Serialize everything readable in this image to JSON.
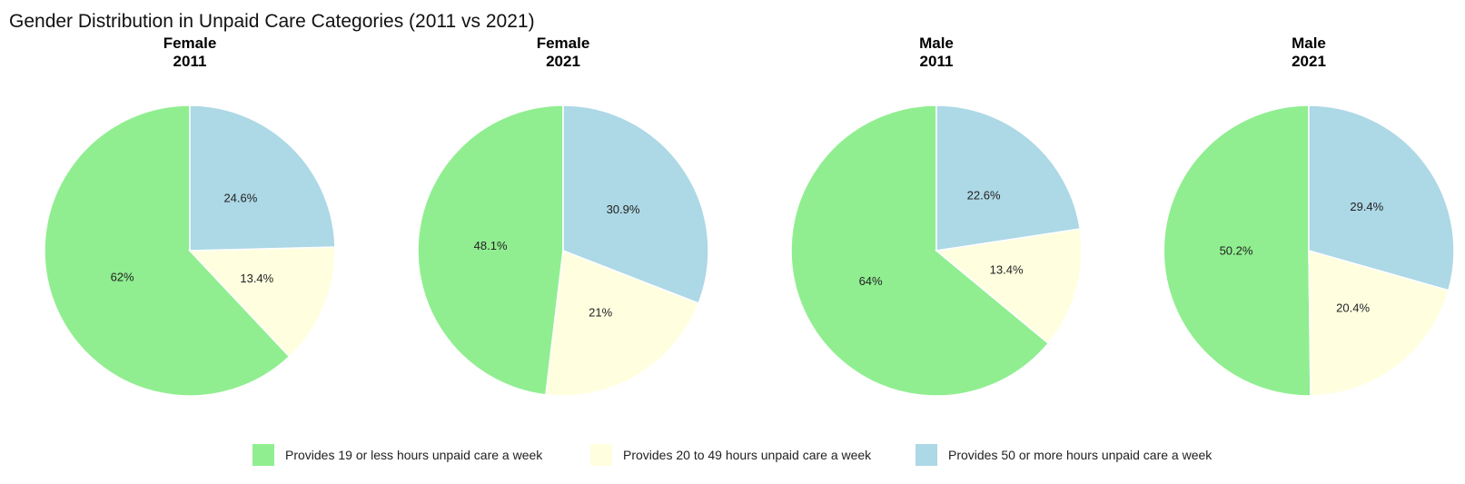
{
  "chart_data": {
    "type": "pie",
    "title": "Gender Distribution in Unpaid Care Categories (2011 vs 2021)",
    "categories": [
      "Provides 19 or less hours unpaid care a week",
      "Provides 20 to 49 hours unpaid care a week",
      "Provides 50 or more hours unpaid care a week"
    ],
    "colors": [
      "#90ee90",
      "#ffffe0",
      "#add8e6"
    ],
    "legend_position": "bottom",
    "panels": [
      {
        "line1": "Female",
        "line2": "2011",
        "values": [
          62.0,
          13.4,
          24.6
        ],
        "labels": [
          "62%",
          "13.4%",
          "24.6%"
        ]
      },
      {
        "line1": "Female",
        "line2": "2021",
        "values": [
          48.1,
          21.0,
          30.9
        ],
        "labels": [
          "48.1%",
          "21%",
          "30.9%"
        ]
      },
      {
        "line1": "Male",
        "line2": "2011",
        "values": [
          64.0,
          13.4,
          22.6
        ],
        "labels": [
          "64%",
          "13.4%",
          "22.6%"
        ]
      },
      {
        "line1": "Male",
        "line2": "2021",
        "values": [
          50.2,
          20.4,
          29.4
        ],
        "labels": [
          "50.2%",
          "20.4%",
          "29.4%"
        ]
      }
    ]
  }
}
